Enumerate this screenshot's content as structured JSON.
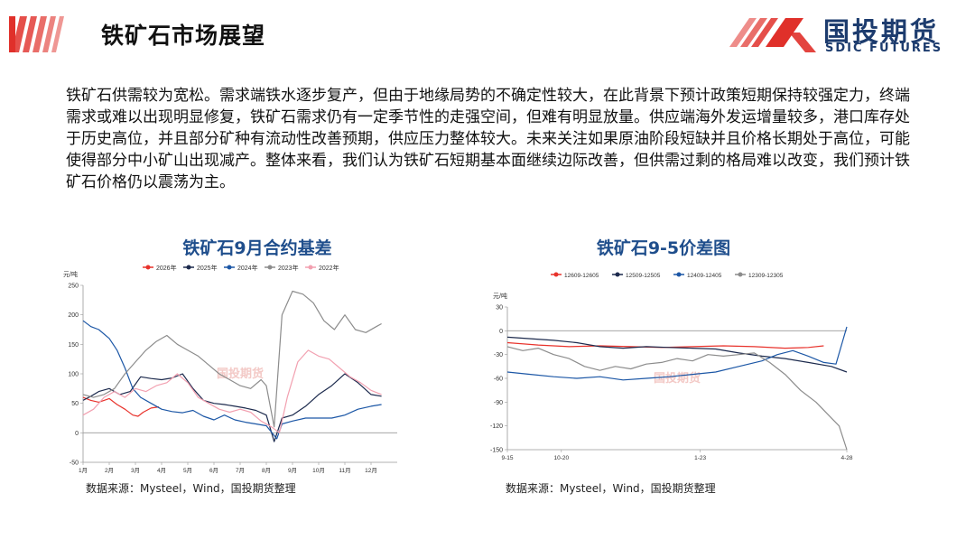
{
  "header": {
    "title": "铁矿石市场展望",
    "logo_cn": "国投期货",
    "logo_en": "SDIC FUTURES",
    "accent_color": "#e0302a",
    "brand_color": "#1d3c6e"
  },
  "body": {
    "paragraph": "铁矿石供需较为宽松。需求端铁水逐步复产，但由于地缘局势的不确定性较大，在此背景下预计政策短期保持较强定力，终端需求或难以出现明显修复，铁矿石需求仍有一定季节性的走强空间，但难有明显放量。供应端海外发运增量较多，港口库存处于历史高位，并且部分矿种有流动性改善预期，供应压力整体较大。未来关注如果原油阶段短缺并且价格长期处于高位，可能使得部分中小矿山出现减产。整体来看，我们认为铁矿石短期基本面继续边际改善，但供需过剩的格局难以改变，我们预计铁矿石价格仍以震荡为主。"
  },
  "chart_data": [
    {
      "type": "line",
      "title": "铁矿石9月合约基差",
      "ylabel": "元/吨",
      "watermark": "国投期货",
      "ylim": [
        -50,
        250
      ],
      "yticks": [
        -50,
        0,
        50,
        100,
        150,
        200,
        250
      ],
      "xlim": [
        1,
        13
      ],
      "xticks": [
        {
          "label": "1月",
          "x": 1
        },
        {
          "label": "2月",
          "x": 2
        },
        {
          "label": "3月",
          "x": 3
        },
        {
          "label": "4月",
          "x": 4
        },
        {
          "label": "5月",
          "x": 5
        },
        {
          "label": "6月",
          "x": 6
        },
        {
          "label": "7月",
          "x": 7
        },
        {
          "label": "8月",
          "x": 8
        },
        {
          "label": "9月",
          "x": 9
        },
        {
          "label": "10月",
          "x": 10
        },
        {
          "label": "11月",
          "x": 11
        },
        {
          "label": "12月",
          "x": 12
        }
      ],
      "legend_position": "top",
      "grid": false,
      "series": [
        {
          "name": "2026年",
          "color": "#e8322b",
          "points": [
            [
              1,
              60
            ],
            [
              1.3,
              55
            ],
            [
              1.6,
              52
            ],
            [
              2,
              58
            ],
            [
              2.3,
              48
            ],
            [
              2.6,
              40
            ],
            [
              2.9,
              30
            ],
            [
              3.1,
              28
            ],
            [
              3.3,
              35
            ],
            [
              3.6,
              42
            ],
            [
              3.9,
              44
            ]
          ]
        },
        {
          "name": "2025年",
          "color": "#1c2a4d",
          "points": [
            [
              1,
              55
            ],
            [
              1.3,
              62
            ],
            [
              1.6,
              70
            ],
            [
              2,
              75
            ],
            [
              2.4,
              65
            ],
            [
              2.8,
              70
            ],
            [
              3.2,
              95
            ],
            [
              3.6,
              92
            ],
            [
              4,
              90
            ],
            [
              4.4,
              93
            ],
            [
              4.8,
              100
            ],
            [
              5.2,
              75
            ],
            [
              5.6,
              55
            ],
            [
              6,
              50
            ],
            [
              6.4,
              48
            ],
            [
              6.8,
              45
            ],
            [
              7.2,
              42
            ],
            [
              7.6,
              38
            ],
            [
              8,
              30
            ],
            [
              8.3,
              -15
            ],
            [
              8.6,
              25
            ],
            [
              9,
              30
            ],
            [
              9.5,
              45
            ],
            [
              10,
              65
            ],
            [
              10.5,
              80
            ],
            [
              11,
              100
            ],
            [
              11.5,
              85
            ],
            [
              12,
              65
            ],
            [
              12.4,
              62
            ]
          ]
        },
        {
          "name": "2024年",
          "color": "#1c57a6",
          "points": [
            [
              1,
              190
            ],
            [
              1.3,
              180
            ],
            [
              1.6,
              175
            ],
            [
              2,
              160
            ],
            [
              2.3,
              140
            ],
            [
              2.6,
              110
            ],
            [
              2.9,
              75
            ],
            [
              3.2,
              60
            ],
            [
              3.6,
              50
            ],
            [
              4,
              40
            ],
            [
              4.4,
              36
            ],
            [
              4.8,
              34
            ],
            [
              5.2,
              38
            ],
            [
              5.6,
              28
            ],
            [
              6,
              22
            ],
            [
              6.4,
              30
            ],
            [
              6.8,
              22
            ],
            [
              7.2,
              18
            ],
            [
              7.6,
              15
            ],
            [
              8,
              12
            ],
            [
              8.4,
              -10
            ],
            [
              8.6,
              15
            ],
            [
              9,
              20
            ],
            [
              9.5,
              25
            ],
            [
              10,
              25
            ],
            [
              10.5,
              25
            ],
            [
              11,
              30
            ],
            [
              11.5,
              40
            ],
            [
              12,
              45
            ],
            [
              12.4,
              48
            ]
          ]
        },
        {
          "name": "2023年",
          "color": "#8c8c8c",
          "points": [
            [
              1,
              65
            ],
            [
              1.4,
              60
            ],
            [
              1.8,
              65
            ],
            [
              2.2,
              75
            ],
            [
              2.6,
              100
            ],
            [
              3,
              120
            ],
            [
              3.4,
              140
            ],
            [
              3.8,
              155
            ],
            [
              4.2,
              165
            ],
            [
              4.6,
              150
            ],
            [
              5,
              140
            ],
            [
              5.4,
              130
            ],
            [
              5.8,
              115
            ],
            [
              6.2,
              100
            ],
            [
              6.6,
              90
            ],
            [
              7,
              80
            ],
            [
              7.4,
              75
            ],
            [
              7.8,
              90
            ],
            [
              8,
              80
            ],
            [
              8.3,
              10
            ],
            [
              8.6,
              200
            ],
            [
              9,
              240
            ],
            [
              9.4,
              235
            ],
            [
              9.8,
              220
            ],
            [
              10.2,
              190
            ],
            [
              10.6,
              175
            ],
            [
              11,
              200
            ],
            [
              11.4,
              175
            ],
            [
              11.8,
              170
            ],
            [
              12.2,
              180
            ],
            [
              12.4,
              185
            ]
          ]
        },
        {
          "name": "2022年",
          "color": "#f2a0b0",
          "points": [
            [
              1,
              30
            ],
            [
              1.4,
              40
            ],
            [
              1.8,
              60
            ],
            [
              2.2,
              70
            ],
            [
              2.6,
              60
            ],
            [
              3,
              75
            ],
            [
              3.4,
              70
            ],
            [
              3.8,
              80
            ],
            [
              4.2,
              85
            ],
            [
              4.6,
              100
            ],
            [
              5,
              85
            ],
            [
              5.4,
              60
            ],
            [
              5.8,
              50
            ],
            [
              6.2,
              40
            ],
            [
              6.6,
              35
            ],
            [
              7,
              40
            ],
            [
              7.4,
              35
            ],
            [
              7.8,
              20
            ],
            [
              8.2,
              10
            ],
            [
              8.5,
              0
            ],
            [
              8.8,
              60
            ],
            [
              9.2,
              120
            ],
            [
              9.6,
              140
            ],
            [
              10,
              130
            ],
            [
              10.4,
              125
            ],
            [
              10.8,
              110
            ],
            [
              11.2,
              95
            ],
            [
              11.6,
              85
            ],
            [
              12,
              72
            ],
            [
              12.4,
              65
            ]
          ]
        }
      ]
    },
    {
      "type": "line",
      "title": "铁矿石9-5价差图",
      "ylabel": "元/吨",
      "watermark": "国投期货",
      "ylim": [
        -150,
        30
      ],
      "yticks": [
        -150,
        -120,
        -90,
        -60,
        -30,
        0,
        30
      ],
      "xlim": [
        0,
        220
      ],
      "xticks": [
        {
          "label": "9-15",
          "x": 0
        },
        {
          "label": "10-20",
          "x": 35
        },
        {
          "label": "1-23",
          "x": 125
        },
        {
          "label": "4-28",
          "x": 220
        }
      ],
      "legend_position": "top",
      "grid": false,
      "series": [
        {
          "name": "12609-12605",
          "color": "#e8322b",
          "points": [
            [
              0,
              -15
            ],
            [
              20,
              -18
            ],
            [
              40,
              -20
            ],
            [
              60,
              -19
            ],
            [
              80,
              -20
            ],
            [
              100,
              -21
            ],
            [
              120,
              -20
            ],
            [
              140,
              -19
            ],
            [
              160,
              -20
            ],
            [
              180,
              -22
            ],
            [
              195,
              -21
            ],
            [
              205,
              -19
            ]
          ]
        },
        {
          "name": "12509-12505",
          "color": "#1c2a4d",
          "points": [
            [
              0,
              -8
            ],
            [
              15,
              -10
            ],
            [
              30,
              -12
            ],
            [
              45,
              -15
            ],
            [
              60,
              -20
            ],
            [
              75,
              -22
            ],
            [
              90,
              -20
            ],
            [
              105,
              -21
            ],
            [
              120,
              -22
            ],
            [
              135,
              -23
            ],
            [
              150,
              -28
            ],
            [
              165,
              -32
            ],
            [
              180,
              -35
            ],
            [
              195,
              -40
            ],
            [
              210,
              -45
            ],
            [
              220,
              -52
            ]
          ]
        },
        {
          "name": "12409-12405",
          "color": "#1c57a6",
          "points": [
            [
              0,
              -52
            ],
            [
              15,
              -55
            ],
            [
              30,
              -58
            ],
            [
              45,
              -60
            ],
            [
              60,
              -58
            ],
            [
              75,
              -62
            ],
            [
              90,
              -60
            ],
            [
              105,
              -58
            ],
            [
              120,
              -55
            ],
            [
              135,
              -52
            ],
            [
              150,
              -45
            ],
            [
              165,
              -38
            ],
            [
              175,
              -30
            ],
            [
              185,
              -25
            ],
            [
              195,
              -32
            ],
            [
              205,
              -40
            ],
            [
              213,
              -42
            ],
            [
              217,
              -15
            ],
            [
              220,
              5
            ]
          ]
        },
        {
          "name": "12309-12305",
          "color": "#8c8c8c",
          "points": [
            [
              0,
              -20
            ],
            [
              10,
              -25
            ],
            [
              20,
              -22
            ],
            [
              30,
              -30
            ],
            [
              40,
              -35
            ],
            [
              50,
              -45
            ],
            [
              60,
              -50
            ],
            [
              70,
              -45
            ],
            [
              80,
              -48
            ],
            [
              90,
              -42
            ],
            [
              100,
              -40
            ],
            [
              110,
              -35
            ],
            [
              120,
              -38
            ],
            [
              130,
              -30
            ],
            [
              140,
              -32
            ],
            [
              150,
              -30
            ],
            [
              160,
              -28
            ],
            [
              170,
              -40
            ],
            [
              180,
              -55
            ],
            [
              190,
              -75
            ],
            [
              200,
              -90
            ],
            [
              210,
              -110
            ],
            [
              215,
              -120
            ],
            [
              220,
              -150
            ]
          ]
        }
      ]
    }
  ],
  "sources": {
    "left": "数据来源：Mysteel，Wind，国投期货整理",
    "right": "数据来源：Mysteel，Wind，国投期货整理"
  }
}
